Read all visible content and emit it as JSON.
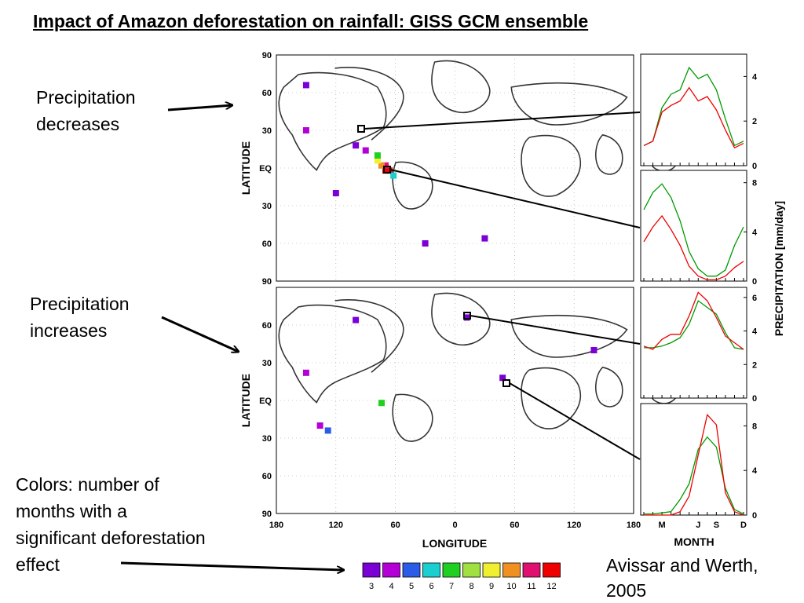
{
  "slide": {
    "title": "Impact of Amazon deforestation on rainfall: GISS GCM ensemble",
    "note_decrease": [
      "Precipitation",
      "decreases"
    ],
    "note_increase": [
      "Precipitation",
      "increases"
    ],
    "note_colors": [
      "Colors:  number of",
      "months with a",
      "significant deforestation",
      "effect"
    ],
    "credit": [
      "Avissar and Werth,",
      "2005"
    ]
  },
  "chart_data": [
    {
      "type": "heatmap",
      "panel": "top map",
      "xlabel": "",
      "ylabel": "LATITUDE",
      "yticks": [
        "90",
        "60",
        "30",
        "EQ",
        "30",
        "60",
        "90"
      ],
      "xlim": [
        -180,
        180
      ],
      "ylim": [
        -90,
        90
      ],
      "cells": [
        {
          "lon": -70,
          "lat": -2,
          "months": 12
        },
        {
          "lon": -66,
          "lat": -2,
          "months": 12
        },
        {
          "lon": -70,
          "lat": 2,
          "months": 11
        },
        {
          "lon": -74,
          "lat": 2,
          "months": 10
        },
        {
          "lon": -78,
          "lat": 6,
          "months": 9
        },
        {
          "lon": -78,
          "lat": 10,
          "months": 7
        },
        {
          "lon": -62,
          "lat": -6,
          "months": 6
        },
        {
          "lon": -90,
          "lat": 14,
          "months": 4
        },
        {
          "lon": -100,
          "lat": 18,
          "months": 3
        },
        {
          "lon": -120,
          "lat": -20,
          "months": 3
        },
        {
          "lon": -150,
          "lat": 30,
          "months": 4
        },
        {
          "lon": -30,
          "lat": -60,
          "months": 3
        },
        {
          "lon": -150,
          "lat": 66,
          "months": 3
        },
        {
          "lon": 30,
          "lat": -56,
          "months": 3
        }
      ]
    },
    {
      "type": "heatmap",
      "panel": "bottom map",
      "xlabel": "LONGITUDE",
      "ylabel": "LATITUDE",
      "xticks": [
        "180",
        "120",
        "60",
        "0",
        "60",
        "120",
        "180"
      ],
      "yticks": [
        "",
        "60",
        "30",
        "EQ",
        "30",
        "60",
        "90"
      ],
      "xlim": [
        -180,
        180
      ],
      "ylim": [
        -90,
        90
      ],
      "cells": [
        {
          "lon": -136,
          "lat": -20,
          "months": 4
        },
        {
          "lon": -128,
          "lat": -24,
          "months": 5
        },
        {
          "lon": -74,
          "lat": -2,
          "months": 7
        },
        {
          "lon": -150,
          "lat": 22,
          "months": 4
        },
        {
          "lon": 48,
          "lat": 18,
          "months": 3
        },
        {
          "lon": 12,
          "lat": 66,
          "months": 3
        },
        {
          "lon": 140,
          "lat": 40,
          "months": 3
        },
        {
          "lon": -100,
          "lat": 64,
          "months": 3
        }
      ]
    },
    {
      "type": "line",
      "panel": "inset 1",
      "ylim": [
        0,
        5
      ],
      "yticks": [
        "0",
        "2",
        "4"
      ],
      "x": [
        "J",
        "F",
        "M",
        "A",
        "M",
        "J",
        "J",
        "A",
        "S",
        "O",
        "N",
        "D"
      ],
      "series": [
        {
          "values": [
            0.9,
            1.1,
            2.6,
            3.2,
            3.4,
            4.4,
            3.9,
            4.1,
            3.4,
            2.1,
            0.9,
            1.1
          ]
        },
        {
          "values": [
            0.9,
            1.1,
            2.4,
            2.7,
            2.9,
            3.5,
            2.9,
            3.1,
            2.5,
            1.6,
            0.8,
            1.0
          ]
        }
      ]
    },
    {
      "type": "line",
      "panel": "inset 2",
      "ylim": [
        0,
        9
      ],
      "yticks": [
        "0",
        "4",
        "8"
      ],
      "x": [
        "J",
        "F",
        "M",
        "A",
        "M",
        "J",
        "J",
        "A",
        "S",
        "O",
        "N",
        "D"
      ],
      "series": [
        {
          "values": [
            5.8,
            7.2,
            7.9,
            6.8,
            4.9,
            2.4,
            1.0,
            0.4,
            0.4,
            0.9,
            2.9,
            4.4
          ]
        },
        {
          "values": [
            3.2,
            4.4,
            5.3,
            4.2,
            2.9,
            1.2,
            0.4,
            0.1,
            0.1,
            0.4,
            1.1,
            1.6
          ]
        }
      ]
    },
    {
      "type": "line",
      "panel": "inset 3",
      "ylim": [
        0,
        6.6
      ],
      "yticks": [
        "0",
        "2",
        "4",
        "6"
      ],
      "x": [
        "J",
        "F",
        "M",
        "A",
        "M",
        "J",
        "J",
        "A",
        "S",
        "O",
        "N",
        "D"
      ],
      "series": [
        {
          "values": [
            3.0,
            3.0,
            3.1,
            3.3,
            3.6,
            4.4,
            5.8,
            5.4,
            5.0,
            3.9,
            3.0,
            2.9
          ]
        },
        {
          "values": [
            3.1,
            2.9,
            3.5,
            3.8,
            3.8,
            4.9,
            6.3,
            5.8,
            4.8,
            3.7,
            3.3,
            2.9
          ]
        }
      ]
    },
    {
      "type": "line",
      "panel": "inset 4",
      "ylim": [
        0,
        10
      ],
      "yticks": [
        "0",
        "4",
        "8"
      ],
      "xticks": [
        "M",
        "J",
        "S",
        "D"
      ],
      "xlabel": "MONTH",
      "x": [
        "J",
        "F",
        "M",
        "A",
        "M",
        "J",
        "J",
        "A",
        "S",
        "O",
        "N",
        "D"
      ],
      "series": [
        {
          "values": [
            0.1,
            0.1,
            0.2,
            0.3,
            1.4,
            2.8,
            5.9,
            7.0,
            6.1,
            2.4,
            0.5,
            0.1
          ]
        },
        {
          "values": [
            0.0,
            0.0,
            0.0,
            0.0,
            0.3,
            1.7,
            5.4,
            9.0,
            8.1,
            2.0,
            0.3,
            0.0
          ]
        }
      ]
    }
  ],
  "insets_ylabel": "PRECIPITATION [mm/day]",
  "legend": {
    "labels": [
      "3",
      "4",
      "5",
      "6",
      "7",
      "8",
      "9",
      "10",
      "11",
      "12"
    ],
    "colors": [
      "#7b00d6",
      "#b400d6",
      "#2b5ce8",
      "#19cfd0",
      "#20d020",
      "#a0e040",
      "#f0f030",
      "#f09020",
      "#e01070",
      "#ee0000"
    ]
  },
  "series_colors": [
    "#009900",
    "#ee0000"
  ]
}
